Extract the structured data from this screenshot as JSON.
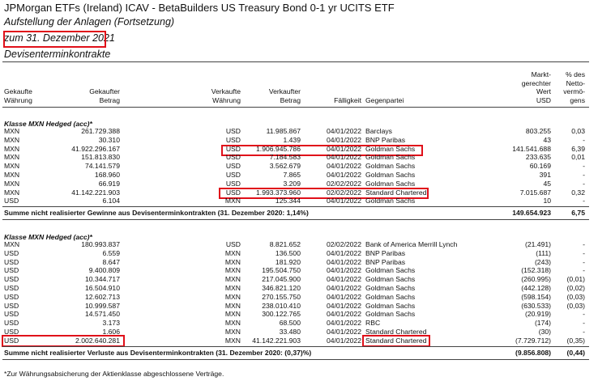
{
  "header": {
    "title": "JPMorgan ETFs (Ireland) ICAV - BetaBuilders US Treasury Bond 0-1 yr UCITS ETF",
    "subtitle": "Aufstellung der Anlagen (Fortsetzung)",
    "date": "zum 31. Dezember 2021",
    "section": "Devisenterminkontrakte"
  },
  "table": {
    "columns": [
      [
        "Gekaufte",
        "Währung"
      ],
      [
        "Gekaufter",
        "Betrag"
      ],
      [
        "Verkaufte",
        "Währung"
      ],
      [
        "Verkaufter",
        "Betrag"
      ],
      [
        "Fälligkeit"
      ],
      [
        "Gegenpartei"
      ],
      [
        "Markt-",
        "gerechter",
        "Wert",
        "USD"
      ],
      [
        "% des",
        "Netto-",
        "vermö-",
        "gens"
      ]
    ],
    "sections": [
      {
        "title": "Klasse MXN Hedged (acc)*",
        "rows": [
          [
            "MXN",
            "261.729.388",
            "USD",
            "11.985.867",
            "04/01/2022",
            "Barclays",
            "803.255",
            "0,03"
          ],
          [
            "MXN",
            "30.310",
            "USD",
            "1.439",
            "04/01/2022",
            "BNP Paribas",
            "43",
            "-"
          ],
          [
            "MXN",
            "41.922.296.167",
            "USD",
            "1.906.945.786",
            "04/01/2022",
            "Goldman Sachs",
            "141.541.688",
            "6,39"
          ],
          [
            "MXN",
            "151.813.830",
            "USD",
            "7.184.583",
            "04/01/2022",
            "Goldman Sachs",
            "233.635",
            "0,01"
          ],
          [
            "MXN",
            "74.141.579",
            "USD",
            "3.562.679",
            "04/01/2022",
            "Goldman Sachs",
            "60.169",
            "-"
          ],
          [
            "MXN",
            "168.960",
            "USD",
            "7.865",
            "04/01/2022",
            "Goldman Sachs",
            "391",
            "-"
          ],
          [
            "MXN",
            "66.919",
            "USD",
            "3.209",
            "02/02/2022",
            "Goldman Sachs",
            "45",
            "-"
          ],
          [
            "MXN",
            "41.142.221.903",
            "USD",
            "1.993.373.960",
            "02/02/2022",
            "Standard Chartered",
            "7.015.687",
            "0,32"
          ],
          [
            "USD",
            "6.104",
            "MXN",
            "125.344",
            "04/01/2022",
            "Goldman Sachs",
            "10",
            "-"
          ]
        ],
        "total": {
          "label": "Summe nicht realisierter Gewinne aus Devisenterminkontrakten (31. Dezember 2020: 1,14%)",
          "value": "149.654.923",
          "percent": "6,75"
        }
      },
      {
        "title": "Klasse MXN Hedged (acc)*",
        "rows": [
          [
            "MXN",
            "180.993.837",
            "USD",
            "8.821.652",
            "02/02/2022",
            "Bank of America Merrill Lynch",
            "(21.491)",
            "-"
          ],
          [
            "USD",
            "6.559",
            "MXN",
            "136.500",
            "04/01/2022",
            "BNP Paribas",
            "(111)",
            "-"
          ],
          [
            "USD",
            "8.647",
            "MXN",
            "181.920",
            "04/01/2022",
            "BNP Paribas",
            "(243)",
            "-"
          ],
          [
            "USD",
            "9.400.809",
            "MXN",
            "195.504.750",
            "04/01/2022",
            "Goldman Sachs",
            "(152.318)",
            "-"
          ],
          [
            "USD",
            "10.344.717",
            "MXN",
            "217.045.900",
            "04/01/2022",
            "Goldman Sachs",
            "(260.995)",
            "(0,01)"
          ],
          [
            "USD",
            "16.504.910",
            "MXN",
            "346.821.120",
            "04/01/2022",
            "Goldman Sachs",
            "(442.128)",
            "(0,02)"
          ],
          [
            "USD",
            "12.602.713",
            "MXN",
            "270.155.750",
            "04/01/2022",
            "Goldman Sachs",
            "(598.154)",
            "(0,03)"
          ],
          [
            "USD",
            "10.999.587",
            "MXN",
            "238.010.410",
            "04/01/2022",
            "Goldman Sachs",
            "(630.533)",
            "(0,03)"
          ],
          [
            "USD",
            "14.571.450",
            "MXN",
            "300.122.765",
            "04/01/2022",
            "Goldman Sachs",
            "(20.919)",
            "-"
          ],
          [
            "USD",
            "3.173",
            "MXN",
            "68.500",
            "04/01/2022",
            "RBC",
            "(174)",
            "-"
          ],
          [
            "USD",
            "1.606",
            "MXN",
            "33.480",
            "04/01/2022",
            "Standard Chartered",
            "(30)",
            "-"
          ],
          [
            "USD",
            "2.002.640.281",
            "MXN",
            "41.142.221.903",
            "04/01/2022",
            "Standard Chartered",
            "(7.729.712)",
            "(0,35)"
          ]
        ],
        "total": {
          "label": "Summe nicht realisierter Verluste aus Devisenterminkontrakten (31. Dezember 2020: (0,37)%)",
          "value": "(9.856.808)",
          "percent": "(0,44)"
        }
      }
    ]
  },
  "footnote": "*Zur Währungsabsicherung der Aktienklasse abgeschlossene Verträge."
}
